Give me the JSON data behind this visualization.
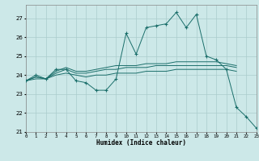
{
  "xlabel": "Humidex (Indice chaleur)",
  "background_color": "#cce8e8",
  "grid_color": "#aacccc",
  "line_color": "#1a6e6a",
  "x_values": [
    0,
    1,
    2,
    3,
    4,
    5,
    6,
    7,
    8,
    9,
    10,
    11,
    12,
    13,
    14,
    15,
    16,
    17,
    18,
    19,
    20,
    21,
    22,
    23
  ],
  "series1": [
    23.7,
    24.0,
    23.8,
    24.3,
    24.3,
    23.7,
    23.6,
    23.2,
    23.2,
    23.8,
    26.2,
    25.1,
    26.5,
    26.6,
    26.7,
    27.3,
    26.5,
    27.2,
    25.0,
    24.8,
    24.3,
    22.3,
    21.8,
    21.2
  ],
  "series2": [
    23.7,
    23.9,
    23.8,
    24.1,
    24.3,
    24.1,
    24.1,
    24.2,
    24.3,
    24.3,
    24.4,
    24.4,
    24.4,
    24.5,
    24.5,
    24.5,
    24.5,
    24.5,
    24.5,
    24.5,
    24.5,
    24.4,
    null,
    null
  ],
  "series3": [
    23.7,
    23.8,
    23.8,
    24.0,
    24.1,
    24.0,
    23.9,
    24.0,
    24.0,
    24.1,
    24.1,
    24.1,
    24.2,
    24.2,
    24.2,
    24.3,
    24.3,
    24.3,
    24.3,
    24.3,
    24.3,
    24.2,
    null,
    null
  ],
  "series4": [
    23.7,
    23.9,
    23.8,
    24.2,
    24.4,
    24.2,
    24.2,
    24.3,
    24.4,
    24.5,
    24.5,
    24.5,
    24.6,
    24.6,
    24.6,
    24.7,
    24.7,
    24.7,
    24.7,
    24.7,
    24.6,
    24.5,
    null,
    null
  ],
  "ylim": [
    21,
    27.7
  ],
  "yticks": [
    21,
    22,
    23,
    24,
    25,
    26,
    27
  ],
  "xlim": [
    0,
    23
  ]
}
